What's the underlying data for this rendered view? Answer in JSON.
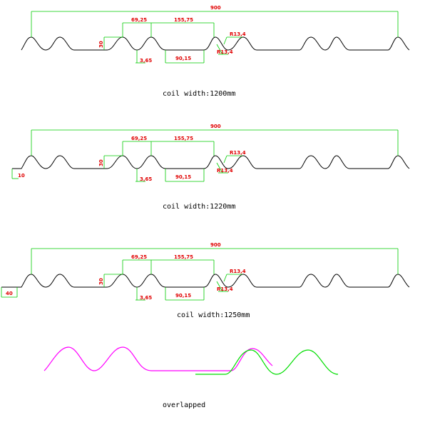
{
  "colors": {
    "profile": "#000000",
    "dimension_line": "#00cc00",
    "dimension_text": "#e00000",
    "overlap_a": "#ff00ff",
    "overlap_b": "#00dd00"
  },
  "dimensions": {
    "overall": "900",
    "pitch": "69,25",
    "span": "155,75",
    "height": "30",
    "bottom_width": "90,15",
    "thickness": "3,65",
    "radius_top": "R13,4",
    "radius_bottom": "R13,4"
  },
  "sections": [
    {
      "caption": "coil width:1200mm",
      "edge_label": ""
    },
    {
      "caption": "coil width:1220mm",
      "edge_label": "10"
    },
    {
      "caption": "coil width:1250mm",
      "edge_label": "40"
    }
  ],
  "overlap_caption": "overlapped"
}
